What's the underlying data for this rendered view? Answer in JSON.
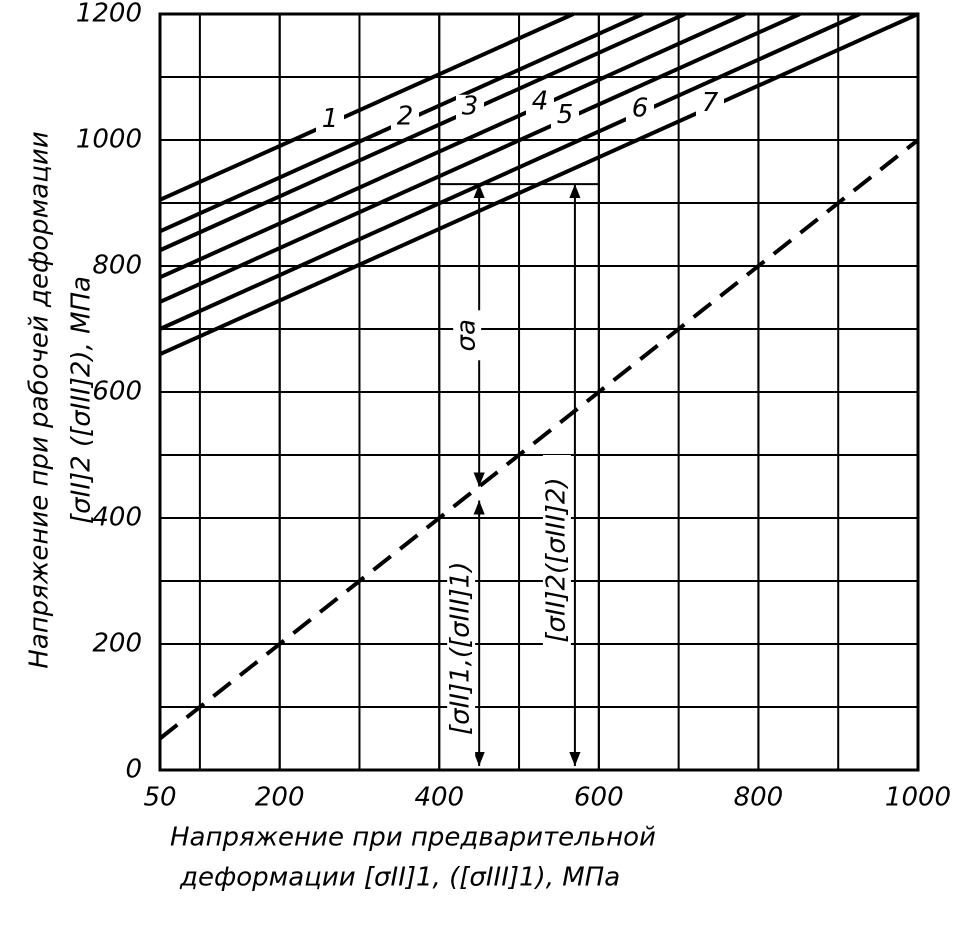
{
  "chart_data": {
    "type": "line",
    "ylabel_lines": [
      "Напряжение при рабочей деформации",
      "[σII]2 ([σIII]2), МПа"
    ],
    "xlabel_lines": [
      "Напряжение при предварительной",
      "деформации [σII]1, ([σIII]1), МПа"
    ],
    "xlim": [
      50,
      1000
    ],
    "ylim": [
      0,
      1200
    ],
    "xticks": [
      50,
      200,
      400,
      600,
      800,
      1000
    ],
    "yticks": [
      0,
      200,
      400,
      600,
      800,
      1000,
      1200
    ],
    "xgrid": [
      100,
      200,
      300,
      400,
      500,
      600,
      700,
      800,
      900
    ],
    "ygrid": [
      100,
      200,
      300,
      400,
      500,
      600,
      700,
      800,
      900,
      1000,
      1100
    ],
    "color": "#000000",
    "series": [
      {
        "name": "1",
        "x": [
          50,
          568
        ],
        "values": [
          905,
          1200
        ]
      },
      {
        "name": "2",
        "x": [
          50,
          655
        ],
        "values": [
          855,
          1200
        ]
      },
      {
        "name": "3",
        "x": [
          50,
          708
        ],
        "values": [
          825,
          1200
        ]
      },
      {
        "name": "4",
        "x": [
          50,
          783
        ],
        "values": [
          782,
          1200
        ]
      },
      {
        "name": "5",
        "x": [
          50,
          852
        ],
        "values": [
          743,
          1200
        ]
      },
      {
        "name": "6",
        "x": [
          50,
          927
        ],
        "values": [
          700,
          1200
        ]
      },
      {
        "name": "7",
        "x": [
          50,
          1000
        ],
        "values": [
          660,
          1200
        ]
      },
      {
        "x": [
          50,
          1000
        ],
        "values": [
          50,
          1000
        ],
        "dashed": true
      }
    ],
    "example": {
      "x1": 450,
      "x2": 570,
      "y_low": 450,
      "y_high": 930,
      "label_a": "σa",
      "label_1": "[σII]1,([σIII]1)",
      "label_2": "[σII]2([σIII]2)"
    }
  }
}
